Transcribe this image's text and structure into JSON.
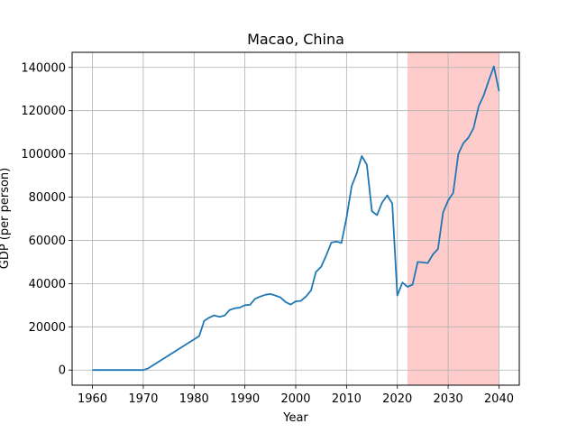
{
  "chart_data": {
    "type": "line",
    "title": "Macao, China",
    "xlabel": "Year",
    "ylabel": "GDP (per person)",
    "xlim": [
      1956,
      2044
    ],
    "ylim": [
      -7000,
      147000
    ],
    "xticks": [
      1960,
      1970,
      1980,
      1990,
      2000,
      2010,
      2020,
      2030,
      2040
    ],
    "yticks": [
      0,
      20000,
      40000,
      60000,
      80000,
      100000,
      120000,
      140000
    ],
    "grid": true,
    "highlight_region": {
      "x_start": 2022,
      "x_end": 2040,
      "color": "#ffcccc"
    },
    "series": [
      {
        "color": "#1f77b4",
        "x": [
          1960,
          1961,
          1962,
          1963,
          1964,
          1965,
          1966,
          1967,
          1968,
          1969,
          1970,
          1971,
          1981,
          1982,
          1983,
          1984,
          1985,
          1986,
          1987,
          1988,
          1989,
          1990,
          1991,
          1992,
          1993,
          1994,
          1995,
          1996,
          1997,
          1998,
          1999,
          2000,
          2001,
          2002,
          2003,
          2004,
          2005,
          2006,
          2007,
          2008,
          2009,
          2010,
          2011,
          2012,
          2013,
          2014,
          2015,
          2016,
          2017,
          2018,
          2019,
          2020,
          2021,
          2022,
          2023,
          2024,
          2025,
          2026,
          2027,
          2028,
          2029,
          2030,
          2031,
          2032,
          2033,
          2034,
          2035,
          2036,
          2037,
          2038,
          2039,
          2040
        ],
        "y": [
          0,
          0,
          0,
          0,
          0,
          0,
          0,
          0,
          0,
          0,
          0,
          800,
          15700,
          22800,
          24300,
          25300,
          24600,
          25200,
          27800,
          28600,
          28900,
          30000,
          30200,
          33000,
          34000,
          34800,
          35200,
          34500,
          33600,
          31500,
          30300,
          31800,
          32000,
          34000,
          36800,
          45400,
          47800,
          53000,
          59000,
          59500,
          58800,
          70500,
          85000,
          91000,
          99000,
          95000,
          73500,
          71700,
          77500,
          80800,
          77000,
          34500,
          40500,
          38500,
          39500,
          50000,
          49800,
          49500,
          53500,
          56000,
          73000,
          78500,
          82000,
          100000,
          105000,
          107500,
          112000,
          122000,
          127000,
          134000,
          140500,
          129000
        ]
      }
    ]
  }
}
